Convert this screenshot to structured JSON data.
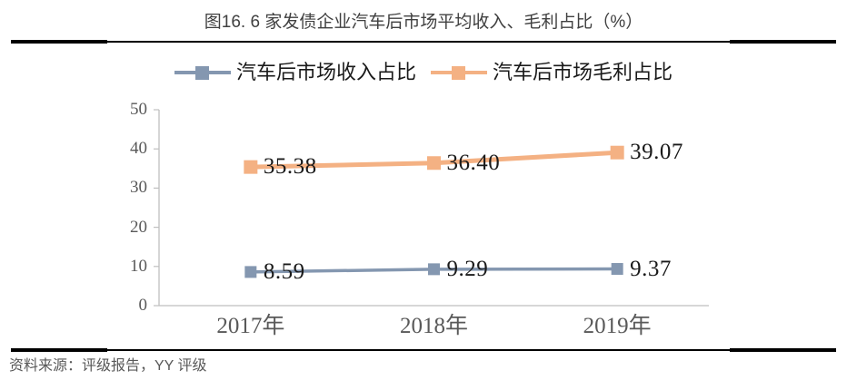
{
  "header": {
    "title": "图16. 6 家发债企业汽车后市场平均收入、毛利占比（%）"
  },
  "source_note": "资料来源：评级报告，YY 评级",
  "chart_data": {
    "type": "line",
    "title": "图16. 6 家发债企业汽车后市场平均收入、毛利占比（%）",
    "categories": [
      "2017年",
      "2018年",
      "2019年"
    ],
    "series": [
      {
        "name": "汽车后市场收入占比",
        "color": "#8497B0",
        "values": [
          8.59,
          9.29,
          9.37
        ],
        "data_labels": [
          "8.59",
          "9.29",
          "9.37"
        ]
      },
      {
        "name": "汽车后市场毛利占比",
        "color": "#F4B183",
        "values": [
          35.38,
          36.4,
          39.07
        ],
        "data_labels": [
          "35.38",
          "36.40",
          "39.07"
        ]
      }
    ],
    "ylim": [
      0,
      50
    ],
    "yticks": [
      0,
      10,
      20,
      30,
      40,
      50
    ],
    "xlabel": "",
    "ylabel": "",
    "grid": false,
    "legend_position": "top",
    "marker": "square",
    "data_labels_shown": true,
    "axis_color": "#BFBFBF",
    "tick_label_color": "#595959"
  }
}
